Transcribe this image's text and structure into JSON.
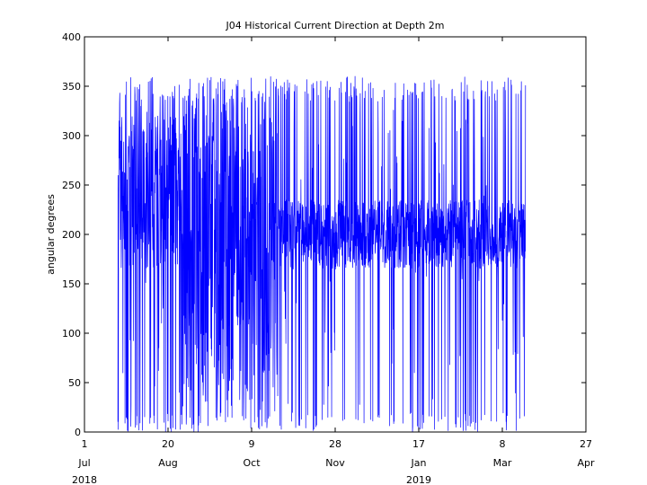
{
  "chart_data": {
    "type": "line",
    "title": "J04 Historical Current Direction at Depth 2m",
    "xlabel": "",
    "ylabel": "angular degrees",
    "x_axis": "date",
    "xlim": [
      "2018-07-01",
      "2019-04-27"
    ],
    "ylim": [
      0,
      400
    ],
    "y_ticks": [
      0,
      50,
      100,
      150,
      200,
      250,
      300,
      350,
      400
    ],
    "x_ticks": [
      {
        "date": "2018-07-01",
        "day": "1",
        "month": "Jul",
        "year": "2018"
      },
      {
        "date": "2018-08-20",
        "day": "20",
        "month": "Aug",
        "year": ""
      },
      {
        "date": "2018-10-09",
        "day": "9",
        "month": "Oct",
        "year": ""
      },
      {
        "date": "2018-11-28",
        "day": "28",
        "month": "Nov",
        "year": ""
      },
      {
        "date": "2019-01-17",
        "day": "17",
        "month": "Jan",
        "year": "2019"
      },
      {
        "date": "2019-03-08",
        "day": "8",
        "month": "Mar",
        "year": ""
      },
      {
        "date": "2019-04-27",
        "day": "27",
        "month": "Apr",
        "year": ""
      }
    ],
    "grid": false,
    "series": [
      {
        "color": "#0000ff",
        "x_range": [
          "2018-07-21",
          "2019-03-22"
        ],
        "segments": [
          {
            "from": "2018-07-21",
            "to": "2018-08-29",
            "min": 0,
            "max": 360,
            "core_min": 165,
            "core_max": 320
          },
          {
            "from": "2018-08-29",
            "to": "2018-10-25",
            "min": 0,
            "max": 360,
            "core_min": 30,
            "core_max": 340
          },
          {
            "from": "2018-10-25",
            "to": "2019-03-22",
            "min": 0,
            "max": 360,
            "core_min": 165,
            "core_max": 235
          }
        ]
      }
    ]
  },
  "colors": {
    "series": "#0000ff",
    "axes": "#000000",
    "background": "#ffffff"
  }
}
